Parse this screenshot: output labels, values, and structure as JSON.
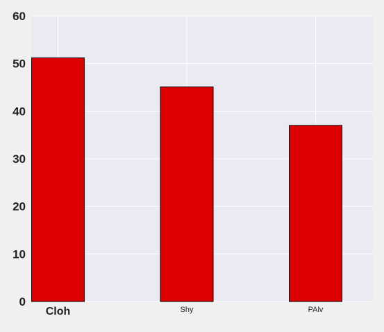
{
  "chart_data": {
    "type": "bar",
    "categories": [
      "Cloh",
      "Shy",
      "PAlv"
    ],
    "values": [
      51.2,
      45.1,
      37.0
    ],
    "ylim": [
      0,
      60
    ],
    "yticks": [
      0,
      10,
      20,
      30,
      40,
      50,
      60
    ],
    "grid": true,
    "legend": "none",
    "title": "",
    "xlabel": "",
    "ylabel": ""
  },
  "style": {
    "plot_bg": "#eaeaf2",
    "page_bg": "#f0f0f0",
    "grid_color": "#ffffff",
    "bar_fill": "#dd0000",
    "bar_edge": "#000000",
    "text_color": "#222222"
  }
}
